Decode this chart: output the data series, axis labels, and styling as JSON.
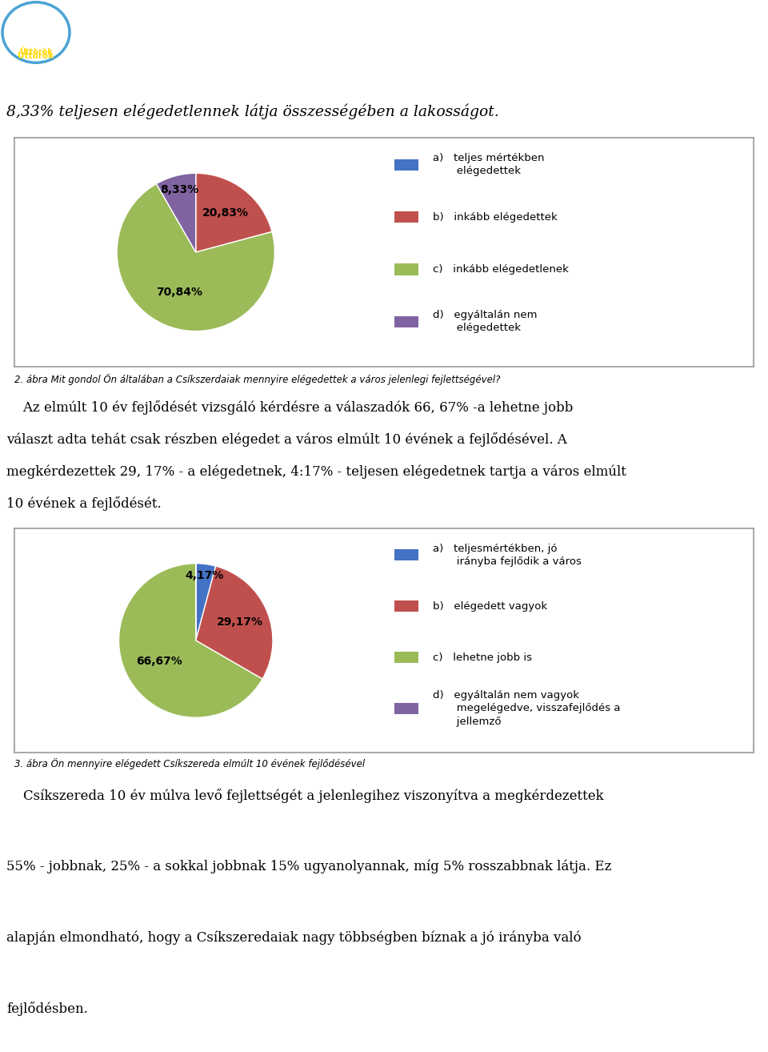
{
  "intro_text": "8,33% teljesen elégedetlennek látja összességében a lakosságot.",
  "pie1_values": [
    0.001,
    20.83,
    70.84,
    8.33
  ],
  "pie1_colors": [
    "#4472C4",
    "#C0504D",
    "#9BBB59",
    "#8064A2"
  ],
  "pie1_label_texts": [
    "",
    "20,83%",
    "70,84%",
    "8,33%"
  ],
  "pie1_label_radii": [
    0.0,
    0.62,
    0.55,
    0.82
  ],
  "pie1_legend": [
    "a)   teljes mértékben\n       elégedettek",
    "b)   inkább elégedettek",
    "c)   inkább elégedetlenek",
    "d)   egyáltalán nem\n       elégedettek"
  ],
  "pie1_legend_colors": [
    "#4472C4",
    "#C0504D",
    "#9BBB59",
    "#8064A2"
  ],
  "pie1_caption": "2. ábra Mit gondol Ön általában a Csíkszerdaiak mennyire elégedettek a város jelenlegi fejlettségével?",
  "pie2_values": [
    4.17,
    29.17,
    66.67,
    0.001
  ],
  "pie2_colors": [
    "#4472C4",
    "#C0504D",
    "#9BBB59",
    "#8064A2"
  ],
  "pie2_label_texts": [
    "4,17%",
    "29,17%",
    "66,67%",
    ""
  ],
  "pie2_label_radii": [
    0.85,
    0.62,
    0.55,
    0.0
  ],
  "pie2_legend": [
    "a)   teljesmértékben, jó\n       irányba fejlődik a város",
    "b)   elégedett vagyok",
    "c)   lehetne jobb is",
    "d)   egyáltalán nem vagyok\n       megelégedve, visszafejlődés a\n       jellemző"
  ],
  "pie2_legend_colors": [
    "#4472C4",
    "#C0504D",
    "#9BBB59",
    "#8064A2"
  ],
  "pie2_caption": "3. ábra Ön mennyire elégedett Csíkszereda elmúlt 10 évének fejlődésével",
  "background_color": "#FFFFFF",
  "text_color": "#000000",
  "border_color": "#999999",
  "para1_lines": [
    "    Az elmúlt 10 év fejlődését vizsgáló kérdésre a válaszadók 66, 67% -a lehetne jobb",
    "választ adta tehát csak részben elégedet a város elmúlt 10 évének a fejlődésével. A",
    "megkérdezettek 29, 17% - a elégedetnek, 4:17% - teljesen elégedetnek tartja a város elmúlt",
    "10 évének a fejlődését."
  ],
  "para2_lines": [
    "    Csíkszereda 10 év múlva levő fejlettségét a jelenlegihez viszonyítva a megkérdezettek",
    "55% - jobbnak, 25% - a sokkal jobbnak 15% ugyanolyannak, míg 5% rosszabbnak látja. Ez",
    "alapján elmondható, hogy a Csíkszeredaiak nagy többségben bíznak a jó irányba való",
    "fejlődésben."
  ]
}
